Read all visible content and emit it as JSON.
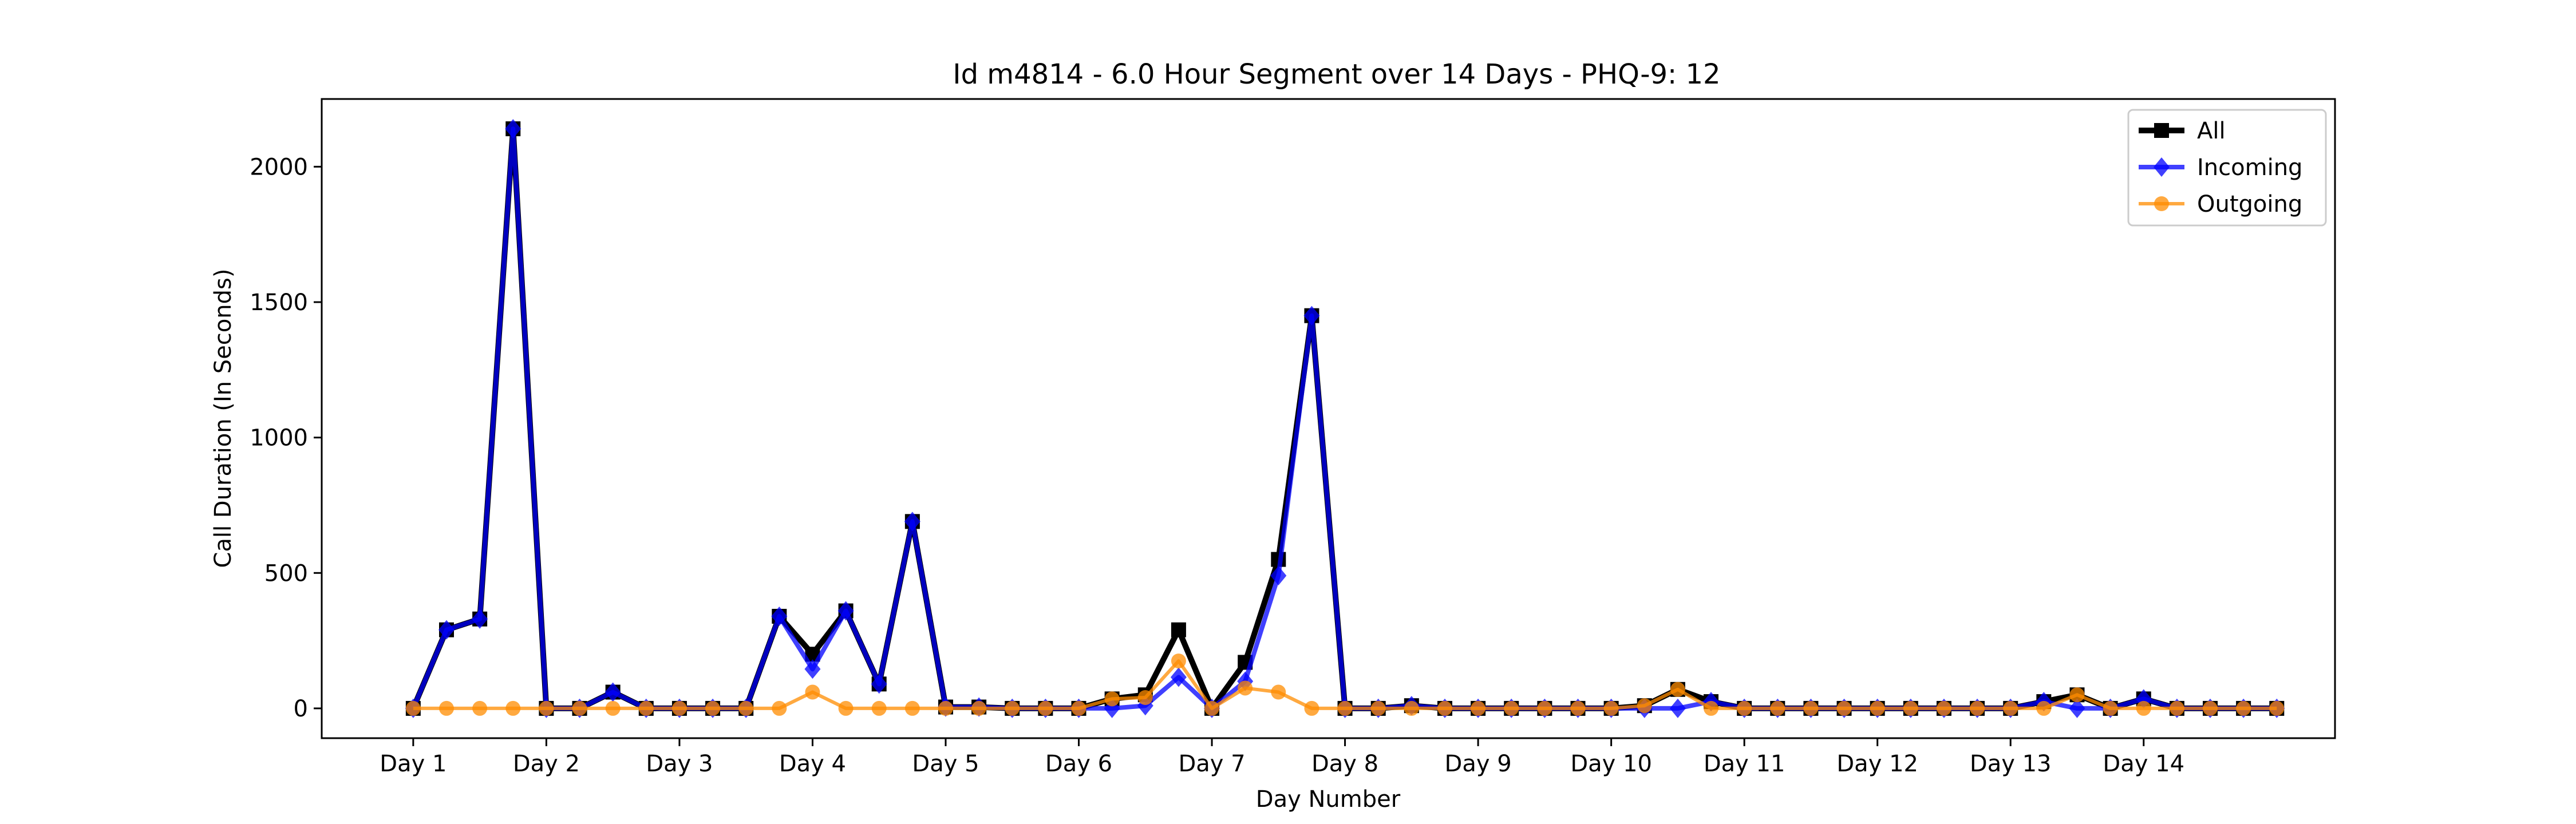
{
  "chart_data": {
    "type": "line",
    "title": "Id m4814 - 6.0 Hour Segment over 14 Days - PHQ-9: 12",
    "xlabel": "Day Number",
    "ylabel": "Call Duration (In Seconds)",
    "ylim": [
      -110,
      2250
    ],
    "xlim": [
      -2.75,
      57.75
    ],
    "yticks": [
      0,
      500,
      1000,
      1500,
      2000
    ],
    "xticks": [
      0,
      4,
      8,
      12,
      16,
      20,
      24,
      28,
      32,
      36,
      40,
      44,
      48,
      52
    ],
    "xtick_labels": [
      "Day 1",
      "Day 2",
      "Day 3",
      "Day 4",
      "Day 5",
      "Day 6",
      "Day 7",
      "Day 8",
      "Day 9",
      "Day 10",
      "Day 11",
      "Day 12",
      "Day 13",
      "Day 14"
    ],
    "legend_position": "top-right",
    "grid": false,
    "series": [
      {
        "name": "All",
        "color": "#000000",
        "marker": "square",
        "values": [
          0,
          290,
          330,
          2140,
          0,
          0,
          60,
          0,
          0,
          0,
          0,
          340,
          200,
          360,
          90,
          690,
          5,
          5,
          0,
          0,
          0,
          35,
          50,
          290,
          0,
          170,
          550,
          1450,
          0,
          0,
          10,
          0,
          0,
          0,
          0,
          0,
          0,
          10,
          70,
          25,
          0,
          0,
          0,
          0,
          0,
          0,
          0,
          0,
          0,
          25,
          50,
          0,
          35,
          0,
          0,
          0,
          0
        ]
      },
      {
        "name": "Incoming",
        "color": "#0000ff",
        "marker": "diamond",
        "values": [
          0,
          290,
          330,
          2140,
          0,
          0,
          60,
          0,
          0,
          0,
          0,
          340,
          145,
          360,
          90,
          690,
          5,
          5,
          0,
          0,
          0,
          0,
          10,
          115,
          0,
          100,
          490,
          1450,
          0,
          0,
          10,
          0,
          0,
          0,
          0,
          0,
          0,
          0,
          0,
          25,
          0,
          0,
          0,
          0,
          0,
          0,
          0,
          0,
          0,
          25,
          0,
          0,
          35,
          0,
          0,
          0,
          0
        ]
      },
      {
        "name": "Outgoing",
        "color": "#ff8c00",
        "marker": "circle",
        "values": [
          0,
          0,
          0,
          0,
          0,
          0,
          0,
          0,
          0,
          0,
          0,
          0,
          60,
          0,
          0,
          0,
          0,
          0,
          0,
          0,
          0,
          35,
          40,
          175,
          0,
          75,
          60,
          0,
          0,
          0,
          0,
          0,
          0,
          0,
          0,
          0,
          0,
          10,
          70,
          0,
          0,
          0,
          0,
          0,
          0,
          0,
          0,
          0,
          0,
          0,
          50,
          0,
          0,
          0,
          0,
          0,
          0
        ]
      }
    ]
  }
}
